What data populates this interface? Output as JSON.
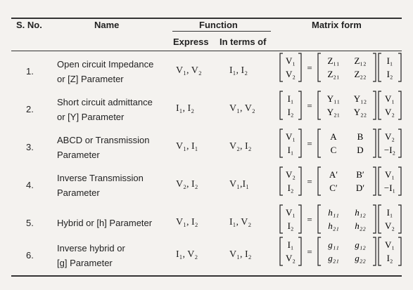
{
  "headers": {
    "sno": "S. No.",
    "name": "Name",
    "function": "Function",
    "express": "Express",
    "in_terms_of": "In terms of",
    "matrix_form": "Matrix form"
  },
  "rows": [
    {
      "sno": "1.",
      "name_line1": "Open circuit Impedance",
      "name_line2": "or [Z] Parameter",
      "express": "V₁, V₂",
      "in_terms": "I₁, I₂",
      "lhs": [
        "V₁",
        "V₂"
      ],
      "matrix": [
        [
          "Z₁₁",
          "Z₁₂"
        ],
        [
          "Z₂₁",
          "Z₂₂"
        ]
      ],
      "rhs": [
        "I₁",
        "I₂"
      ]
    },
    {
      "sno": "2.",
      "name_line1": "Short circuit admittance",
      "name_line2": "or [Y] Parameter",
      "express": "I₁, I₂",
      "in_terms": "V₁, V₂",
      "lhs": [
        "I₁",
        "I₂"
      ],
      "matrix": [
        [
          "Y₁₁",
          "Y₁₂"
        ],
        [
          "Y₂₁",
          "Y₂₂"
        ]
      ],
      "rhs": [
        "V₁",
        "V₂"
      ]
    },
    {
      "sno": "3.",
      "name_line1": "ABCD or Transmission",
      "name_line2": "Parameter",
      "express": "V₁, I₁",
      "in_terms": "V₂, I₂",
      "lhs": [
        "V₁",
        "I₁"
      ],
      "matrix": [
        [
          "A",
          "B"
        ],
        [
          "C",
          "D"
        ]
      ],
      "rhs": [
        "V₂",
        "−I₂"
      ]
    },
    {
      "sno": "4.",
      "name_line1": "Inverse Transmission",
      "name_line2": "Parameter",
      "express": "V₂, I₂",
      "in_terms": "V₁,I₁",
      "lhs": [
        "V₂",
        "I₂"
      ],
      "matrix": [
        [
          "A′",
          "B′"
        ],
        [
          "C′",
          "D′"
        ]
      ],
      "rhs": [
        "V₁",
        "−I₁"
      ]
    },
    {
      "sno": "5.",
      "name_line1": "Hybrid or [h] Parameter",
      "name_line2": "",
      "express": "V₁, I₂",
      "in_terms": "I₁, V₂",
      "lhs": [
        "V₁",
        "I₂"
      ],
      "matrix": [
        [
          "h₁₁",
          "h₁₂"
        ],
        [
          "h₂₁",
          "h₂₂"
        ]
      ],
      "rhs": [
        "I₁",
        "V₂"
      ]
    },
    {
      "sno": "6.",
      "name_line1": "Inverse hybrid or",
      "name_line2": "[g] Parameter",
      "express": "I₁, V₂",
      "in_terms": "V₁, I₂",
      "lhs": [
        "I₁",
        "V₂"
      ],
      "matrix": [
        [
          "g₁₁",
          "g₁₂"
        ],
        [
          "g₂₁",
          "g₂₂"
        ]
      ],
      "rhs": [
        "V₁",
        "I₂"
      ]
    }
  ]
}
